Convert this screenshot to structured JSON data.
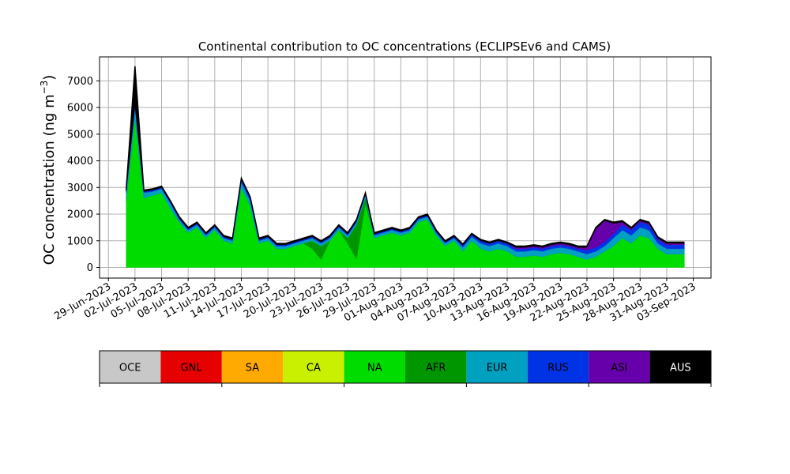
{
  "chart_data": {
    "type": "area",
    "title": "Continental contribution to OC concentrations (ECLIPSEv6 and CAMS)",
    "ylabel": "OC concentration (ng m",
    "ylabel_sup": "−3",
    "ylabel_close": ")",
    "xlabel": "",
    "ylim": [
      -400,
      7900
    ],
    "yticks": [
      0,
      1000,
      2000,
      3000,
      4000,
      5000,
      6000,
      7000
    ],
    "ytick_labels": [
      "0",
      "1000",
      "2000",
      "3000",
      "4000",
      "5000",
      "6000",
      "7000"
    ],
    "x_range": [
      "2023-06-28",
      "2023-09-05"
    ],
    "xticks": [
      "2023-06-29",
      "2023-07-02",
      "2023-07-05",
      "2023-07-08",
      "2023-07-11",
      "2023-07-14",
      "2023-07-17",
      "2023-07-20",
      "2023-07-23",
      "2023-07-26",
      "2023-07-29",
      "2023-08-01",
      "2023-08-04",
      "2023-08-07",
      "2023-08-10",
      "2023-08-13",
      "2023-08-16",
      "2023-08-19",
      "2023-08-22",
      "2023-08-25",
      "2023-08-28",
      "2023-08-31",
      "2023-09-03"
    ],
    "xtick_labels": [
      "29-Jun-2023",
      "02-Jul-2023",
      "05-Jul-2023",
      "08-Jul-2023",
      "11-Jul-2023",
      "14-Jul-2023",
      "17-Jul-2023",
      "20-Jul-2023",
      "23-Jul-2023",
      "26-Jul-2023",
      "29-Jul-2023",
      "01-Aug-2023",
      "04-Aug-2023",
      "07-Aug-2023",
      "10-Aug-2023",
      "13-Aug-2023",
      "16-Aug-2023",
      "19-Aug-2023",
      "22-Aug-2023",
      "25-Aug-2023",
      "28-Aug-2023",
      "31-Aug-2023",
      "03-Sep-2023"
    ],
    "grid": true,
    "stacked": true,
    "x": [
      "2023-07-01",
      "2023-07-02",
      "2023-07-03",
      "2023-07-04",
      "2023-07-05",
      "2023-07-06",
      "2023-07-07",
      "2023-07-08",
      "2023-07-09",
      "2023-07-10",
      "2023-07-11",
      "2023-07-12",
      "2023-07-13",
      "2023-07-14",
      "2023-07-15",
      "2023-07-16",
      "2023-07-17",
      "2023-07-18",
      "2023-07-19",
      "2023-07-20",
      "2023-07-21",
      "2023-07-22",
      "2023-07-23",
      "2023-07-24",
      "2023-07-25",
      "2023-07-26",
      "2023-07-27",
      "2023-07-28",
      "2023-07-29",
      "2023-07-30",
      "2023-07-31",
      "2023-08-01",
      "2023-08-02",
      "2023-08-03",
      "2023-08-04",
      "2023-08-05",
      "2023-08-06",
      "2023-08-07",
      "2023-08-08",
      "2023-08-09",
      "2023-08-10",
      "2023-08-11",
      "2023-08-12",
      "2023-08-13",
      "2023-08-14",
      "2023-08-15",
      "2023-08-16",
      "2023-08-17",
      "2023-08-18",
      "2023-08-19",
      "2023-08-20",
      "2023-08-21",
      "2023-08-22",
      "2023-08-23",
      "2023-08-24",
      "2023-08-25",
      "2023-08-26",
      "2023-08-27",
      "2023-08-28",
      "2023-08-29",
      "2023-08-30",
      "2023-08-31",
      "2023-09-01",
      "2023-09-02"
    ],
    "series": [
      {
        "name": "OCE",
        "color": "#c8c8c8",
        "values": [
          0,
          0,
          0,
          0,
          0,
          0,
          0,
          0,
          0,
          0,
          0,
          0,
          0,
          0,
          0,
          0,
          0,
          0,
          0,
          0,
          0,
          0,
          0,
          0,
          0,
          0,
          0,
          0,
          0,
          0,
          0,
          0,
          0,
          0,
          0,
          0,
          0,
          0,
          0,
          0,
          0,
          0,
          0,
          0,
          0,
          0,
          0,
          0,
          0,
          0,
          0,
          0,
          0,
          0,
          0,
          0,
          0,
          0,
          0,
          0,
          0,
          0,
          0,
          0
        ]
      },
      {
        "name": "GNL",
        "color": "#e60000",
        "values": [
          0,
          0,
          0,
          0,
          0,
          0,
          0,
          0,
          0,
          0,
          0,
          0,
          0,
          0,
          0,
          0,
          0,
          0,
          0,
          0,
          0,
          0,
          0,
          0,
          0,
          0,
          0,
          0,
          0,
          0,
          0,
          0,
          0,
          0,
          0,
          0,
          0,
          0,
          0,
          0,
          0,
          0,
          0,
          0,
          0,
          0,
          0,
          0,
          0,
          0,
          0,
          0,
          0,
          0,
          0,
          0,
          0,
          0,
          0,
          0,
          0,
          0,
          0,
          0
        ]
      },
      {
        "name": "SA",
        "color": "#ffaa00",
        "values": [
          0,
          0,
          0,
          0,
          0,
          0,
          0,
          0,
          0,
          0,
          0,
          0,
          0,
          0,
          0,
          0,
          0,
          0,
          0,
          0,
          0,
          0,
          0,
          0,
          0,
          0,
          0,
          0,
          0,
          0,
          0,
          0,
          0,
          0,
          0,
          0,
          0,
          0,
          0,
          0,
          0,
          0,
          0,
          0,
          0,
          0,
          0,
          0,
          0,
          0,
          0,
          0,
          0,
          0,
          0,
          0,
          0,
          0,
          0,
          0,
          0,
          0,
          0,
          0
        ]
      },
      {
        "name": "CA",
        "color": "#c8f000",
        "values": [
          0,
          0,
          0,
          0,
          0,
          0,
          0,
          0,
          0,
          0,
          0,
          0,
          0,
          0,
          0,
          0,
          0,
          0,
          0,
          0,
          0,
          0,
          0,
          0,
          0,
          0,
          0,
          0,
          0,
          0,
          0,
          0,
          0,
          0,
          0,
          0,
          0,
          0,
          0,
          0,
          0,
          0,
          0,
          0,
          0,
          0,
          0,
          0,
          0,
          0,
          0,
          0,
          0,
          0,
          0,
          0,
          0,
          0,
          0,
          0,
          0,
          0,
          0,
          0
        ]
      },
      {
        "name": "NA",
        "color": "#00dc00",
        "values": [
          2500,
          5600,
          2600,
          2700,
          2800,
          2200,
          1700,
          1300,
          1500,
          1100,
          1400,
          1000,
          900,
          3000,
          2300,
          900,
          1000,
          700,
          700,
          800,
          900,
          700,
          300,
          1000,
          1400,
          900,
          300,
          2400,
          1100,
          1200,
          1300,
          1200,
          1300,
          1700,
          1800,
          1200,
          800,
          1000,
          600,
          1000,
          700,
          600,
          700,
          600,
          400,
          400,
          450,
          400,
          500,
          550,
          500,
          400,
          300,
          400,
          600,
          800,
          1100,
          900,
          1200,
          1100,
          700,
          500,
          500,
          500
        ]
      },
      {
        "name": "AFR",
        "color": "#009600",
        "values": [
          0,
          0,
          0,
          0,
          0,
          0,
          0,
          0,
          0,
          0,
          0,
          0,
          0,
          0,
          0,
          0,
          0,
          0,
          0,
          0,
          0,
          300,
          500,
          0,
          0,
          200,
          1300,
          200,
          0,
          0,
          0,
          0,
          0,
          0,
          0,
          0,
          0,
          0,
          0,
          0,
          0,
          0,
          0,
          0,
          0,
          0,
          0,
          0,
          0,
          0,
          0,
          0,
          0,
          0,
          0,
          0,
          0,
          0,
          0,
          0,
          0,
          0,
          0,
          0
        ]
      },
      {
        "name": "EUR",
        "color": "#00a0c0",
        "values": [
          300,
          400,
          200,
          150,
          150,
          200,
          100,
          100,
          100,
          100,
          100,
          100,
          100,
          200,
          200,
          100,
          100,
          100,
          100,
          100,
          100,
          100,
          100,
          100,
          100,
          100,
          100,
          100,
          100,
          100,
          100,
          100,
          100,
          100,
          100,
          100,
          100,
          100,
          150,
          150,
          200,
          200,
          200,
          200,
          200,
          200,
          200,
          200,
          200,
          200,
          200,
          200,
          200,
          200,
          200,
          300,
          300,
          300,
          300,
          300,
          200,
          200,
          200,
          200
        ]
      },
      {
        "name": "RUS",
        "color": "#0033e6",
        "values": [
          50,
          100,
          50,
          50,
          50,
          50,
          50,
          50,
          50,
          50,
          50,
          50,
          50,
          100,
          100,
          50,
          50,
          50,
          50,
          50,
          50,
          50,
          50,
          50,
          50,
          50,
          50,
          50,
          50,
          50,
          50,
          50,
          50,
          50,
          50,
          50,
          50,
          50,
          80,
          80,
          100,
          100,
          100,
          100,
          100,
          100,
          100,
          100,
          100,
          100,
          100,
          100,
          150,
          150,
          150,
          150,
          200,
          200,
          200,
          200,
          150,
          150,
          150,
          150
        ]
      },
      {
        "name": "ASI",
        "color": "#6600aa",
        "values": [
          0,
          0,
          0,
          0,
          0,
          0,
          0,
          0,
          0,
          0,
          0,
          0,
          0,
          0,
          0,
          0,
          0,
          0,
          0,
          0,
          0,
          0,
          0,
          0,
          0,
          0,
          0,
          0,
          0,
          0,
          0,
          0,
          0,
          0,
          0,
          0,
          0,
          0,
          0,
          0,
          0,
          0,
          0,
          0,
          50,
          50,
          50,
          50,
          50,
          50,
          50,
          50,
          100,
          700,
          800,
          400,
          100,
          50,
          50,
          50,
          50,
          50,
          50,
          50
        ]
      },
      {
        "name": "AUS",
        "color": "#000000",
        "values": [
          50,
          1450,
          50,
          50,
          50,
          50,
          50,
          50,
          50,
          50,
          50,
          50,
          50,
          50,
          50,
          50,
          50,
          50,
          50,
          50,
          50,
          50,
          50,
          50,
          50,
          50,
          50,
          50,
          50,
          50,
          50,
          50,
          50,
          50,
          50,
          50,
          50,
          50,
          50,
          50,
          50,
          50,
          50,
          50,
          50,
          50,
          50,
          50,
          50,
          50,
          50,
          50,
          50,
          50,
          50,
          50,
          50,
          50,
          50,
          50,
          50,
          50,
          50,
          50
        ]
      }
    ],
    "legend": {
      "placement": "bottom",
      "items": [
        {
          "label": "OCE",
          "color": "#c8c8c8",
          "text_color": "#000000"
        },
        {
          "label": "GNL",
          "color": "#e60000",
          "text_color": "#000000"
        },
        {
          "label": "SA",
          "color": "#ffaa00",
          "text_color": "#000000"
        },
        {
          "label": "CA",
          "color": "#c8f000",
          "text_color": "#000000"
        },
        {
          "label": "NA",
          "color": "#00dc00",
          "text_color": "#000000"
        },
        {
          "label": "AFR",
          "color": "#009600",
          "text_color": "#000000"
        },
        {
          "label": "EUR",
          "color": "#00a0c0",
          "text_color": "#000000"
        },
        {
          "label": "RUS",
          "color": "#0033e6",
          "text_color": "#000000"
        },
        {
          "label": "ASI",
          "color": "#6600aa",
          "text_color": "#000000"
        },
        {
          "label": "AUS",
          "color": "#000000",
          "text_color": "#ffffff"
        }
      ]
    }
  }
}
